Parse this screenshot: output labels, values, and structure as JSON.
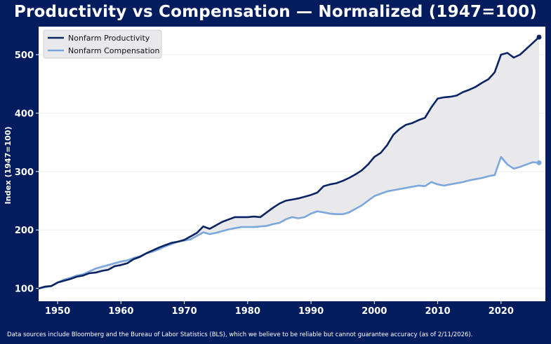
{
  "title": "Productivity vs Compensation — Normalized (1947=100)",
  "footer": "Data sources include Bloomberg and the Bureau of Labor Statistics (BLS), which we believe to be reliable but cannot guarantee accuracy (as of 2/11/2026).",
  "colors": {
    "background": "#031c5e",
    "plot_background": "#ffffff",
    "productivity": "#0a2463",
    "compensation": "#7ba7dc",
    "gap_fill": "#e9e9eb"
  },
  "chart_data": {
    "type": "line",
    "title": "Productivity vs Compensation — Normalized (1947=100)",
    "xlabel": "",
    "ylabel": "Index (1947=100)",
    "xlim": [
      1947,
      2027
    ],
    "ylim": [
      78,
      548
    ],
    "xticks": [
      1950,
      1960,
      1970,
      1980,
      1990,
      2000,
      2010,
      2020
    ],
    "yticks": [
      100,
      200,
      300,
      400,
      500
    ],
    "grid": true,
    "legend": "top-left",
    "fill_between": true,
    "series": [
      {
        "name": "Nonfarm Productivity",
        "x": [
          1947,
          1948,
          1949,
          1950,
          1951,
          1952,
          1953,
          1954,
          1955,
          1956,
          1957,
          1958,
          1959,
          1960,
          1961,
          1962,
          1963,
          1964,
          1965,
          1966,
          1967,
          1968,
          1969,
          1970,
          1971,
          1972,
          1973,
          1974,
          1975,
          1976,
          1977,
          1978,
          1979,
          1980,
          1981,
          1982,
          1983,
          1984,
          1985,
          1986,
          1987,
          1988,
          1989,
          1990,
          1991,
          1992,
          1993,
          1994,
          1995,
          1996,
          1997,
          1998,
          1999,
          2000,
          2001,
          2002,
          2003,
          2004,
          2005,
          2006,
          2007,
          2008,
          2009,
          2010,
          2011,
          2012,
          2013,
          2014,
          2015,
          2016,
          2017,
          2018,
          2019,
          2020,
          2021,
          2022,
          2023,
          2024,
          2025,
          2026
        ],
        "values": [
          100,
          103,
          104,
          110,
          113,
          116,
          120,
          122,
          126,
          127,
          130,
          132,
          138,
          140,
          143,
          150,
          154,
          160,
          165,
          170,
          174,
          178,
          180,
          183,
          189,
          195,
          206,
          202,
          208,
          214,
          218,
          222,
          222,
          222,
          223,
          222,
          230,
          238,
          245,
          250,
          252,
          254,
          257,
          260,
          264,
          275,
          278,
          280,
          284,
          289,
          295,
          302,
          312,
          325,
          332,
          345,
          363,
          373,
          380,
          383,
          388,
          392,
          410,
          425,
          427,
          428,
          430,
          436,
          440,
          445,
          452,
          458,
          470,
          500,
          503,
          495,
          500,
          510,
          520,
          530
        ]
      },
      {
        "name": "Nonfarm Compensation",
        "x": [
          1947,
          1948,
          1949,
          1950,
          1951,
          1952,
          1953,
          1954,
          1955,
          1956,
          1957,
          1958,
          1959,
          1960,
          1961,
          1962,
          1963,
          1964,
          1965,
          1966,
          1967,
          1968,
          1969,
          1970,
          1971,
          1972,
          1973,
          1974,
          1975,
          1976,
          1977,
          1978,
          1979,
          1980,
          1981,
          1982,
          1983,
          1984,
          1985,
          1986,
          1987,
          1988,
          1989,
          1990,
          1991,
          1992,
          1993,
          1994,
          1995,
          1996,
          1997,
          1998,
          1999,
          2000,
          2001,
          2002,
          2003,
          2004,
          2005,
          2006,
          2007,
          2008,
          2009,
          2010,
          2011,
          2012,
          2013,
          2014,
          2015,
          2016,
          2017,
          2018,
          2019,
          2020,
          2021,
          2022,
          2023,
          2024,
          2025,
          2026
        ],
        "values": [
          100,
          102,
          104,
          110,
          115,
          118,
          122,
          124,
          129,
          134,
          137,
          140,
          143,
          146,
          148,
          152,
          155,
          160,
          163,
          167,
          172,
          176,
          180,
          182,
          184,
          190,
          196,
          193,
          195,
          198,
          201,
          203,
          205,
          205,
          205,
          206,
          207,
          210,
          212,
          218,
          222,
          220,
          222,
          228,
          232,
          230,
          228,
          227,
          227,
          230,
          236,
          242,
          250,
          258,
          262,
          266,
          268,
          270,
          272,
          274,
          276,
          275,
          282,
          278,
          276,
          278,
          280,
          282,
          285,
          287,
          289,
          292,
          294,
          325,
          312,
          305,
          308,
          312,
          316,
          315
        ]
      }
    ]
  }
}
